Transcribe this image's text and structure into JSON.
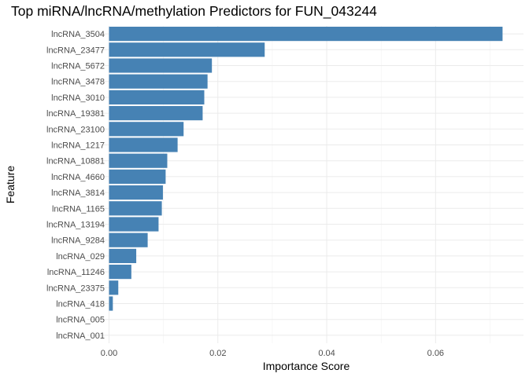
{
  "chart_data": {
    "type": "bar",
    "orientation": "horizontal",
    "title": "Top miRNA/lncRNA/methylation Predictors for FUN_043244",
    "xlabel": "Importance Score",
    "ylabel": "Feature",
    "xlim": [
      0,
      0.0725
    ],
    "x_ticks": [
      0.0,
      0.02,
      0.04,
      0.06
    ],
    "x_tick_labels": [
      "0.00",
      "0.02",
      "0.04",
      "0.06"
    ],
    "grid": true,
    "bar_color": "#4682B4",
    "categories": [
      "lncRNA_3504",
      "lncRNA_23477",
      "lncRNA_5672",
      "lncRNA_3478",
      "lncRNA_3010",
      "lncRNA_19381",
      "lncRNA_23100",
      "lncRNA_1217",
      "lncRNA_10881",
      "lncRNA_4660",
      "lncRNA_3814",
      "lncRNA_1165",
      "lncRNA_13194",
      "lncRNA_9284",
      "lncRNA_029",
      "lncRNA_11246",
      "lncRNA_23375",
      "lncRNA_418",
      "lncRNA_005",
      "lncRNA_001"
    ],
    "values": [
      0.0723,
      0.0286,
      0.0189,
      0.0181,
      0.0175,
      0.0172,
      0.0137,
      0.0126,
      0.0107,
      0.0104,
      0.0099,
      0.0097,
      0.0091,
      0.0071,
      0.005,
      0.0041,
      0.0017,
      0.0007,
      0.0,
      0.0
    ]
  }
}
